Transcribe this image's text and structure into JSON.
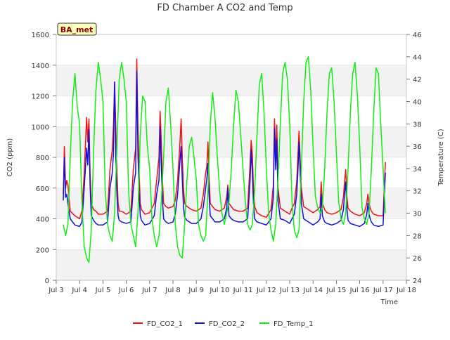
{
  "chart_data": {
    "type": "line",
    "title": "FD Chamber A CO2 and Temp",
    "badge": "BA_met",
    "xlabel": "Time",
    "ylabel_left": "CO2 (ppm)",
    "ylabel_right": "Temperature (C)",
    "xlim": [
      3.0,
      18.0
    ],
    "ylim_left": [
      0,
      1600
    ],
    "ylim_right": [
      24,
      46
    ],
    "x_ticks": [
      {
        "x": 3,
        "label": "Jul 3"
      },
      {
        "x": 4,
        "label": "Jul 4"
      },
      {
        "x": 5,
        "label": "Jul 5"
      },
      {
        "x": 6,
        "label": "Jul 6"
      },
      {
        "x": 7,
        "label": "Jul 7"
      },
      {
        "x": 8,
        "label": "Jul 8"
      },
      {
        "x": 9,
        "label": "Jul 9"
      },
      {
        "x": 10,
        "label": "Jul 10"
      },
      {
        "x": 11,
        "label": "Jul 11"
      },
      {
        "x": 12,
        "label": "Jul 12"
      },
      {
        "x": 13,
        "label": "Jul 13"
      },
      {
        "x": 14,
        "label": "Jul 14"
      },
      {
        "x": 15,
        "label": "Jul 15"
      },
      {
        "x": 16,
        "label": "Jul 16"
      },
      {
        "x": 17,
        "label": "Jul 17"
      },
      {
        "x": 18,
        "label": "Jul 18"
      }
    ],
    "y_ticks_left": [
      0,
      200,
      400,
      600,
      800,
      1000,
      1200,
      1400,
      1600
    ],
    "y_ticks_right": [
      24,
      26,
      28,
      30,
      32,
      34,
      36,
      38,
      40,
      42,
      44,
      46
    ],
    "grid": true,
    "legend_position": "bottom",
    "series": [
      {
        "name": "FD_CO2_1",
        "axis": "left",
        "color": "#ee1111",
        "x": [
          3.3,
          3.35,
          3.4,
          3.45,
          3.5,
          3.6,
          3.8,
          4.0,
          4.1,
          4.2,
          4.3,
          4.35,
          4.4,
          4.45,
          4.5,
          4.6,
          4.7,
          4.8,
          5.0,
          5.2,
          5.3,
          5.4,
          5.45,
          5.5,
          5.55,
          5.6,
          5.65,
          5.7,
          5.8,
          6.0,
          6.2,
          6.3,
          6.4,
          6.45,
          6.5,
          6.55,
          6.6,
          6.65,
          6.7,
          6.8,
          7.0,
          7.2,
          7.3,
          7.4,
          7.45,
          7.5,
          7.55,
          7.6,
          7.7,
          7.8,
          8.0,
          8.1,
          8.2,
          8.3,
          8.35,
          8.4,
          8.45,
          8.5,
          8.6,
          8.8,
          9.0,
          9.2,
          9.3,
          9.4,
          9.45,
          9.5,
          9.55,
          9.6,
          9.7,
          9.8,
          10.0,
          10.2,
          10.3,
          10.35,
          10.4,
          10.5,
          10.6,
          10.8,
          11.0,
          11.2,
          11.3,
          11.35,
          11.4,
          11.45,
          11.5,
          11.6,
          11.8,
          12.0,
          12.2,
          12.3,
          12.35,
          12.4,
          12.45,
          12.5,
          12.6,
          12.8,
          13.0,
          13.1,
          13.2,
          13.3,
          13.35,
          13.4,
          13.5,
          13.6,
          13.8,
          14.0,
          14.2,
          14.3,
          14.35,
          14.4,
          14.5,
          14.6,
          14.8,
          15.0,
          15.2,
          15.3,
          15.35,
          15.4,
          15.45,
          15.5,
          15.6,
          15.8,
          16.0,
          16.2,
          16.3,
          16.35,
          16.4,
          16.45,
          16.5,
          16.6,
          16.8,
          17.0,
          17.1
        ],
        "y": [
          560,
          870,
          600,
          650,
          620,
          450,
          420,
          400,
          450,
          700,
          1060,
          900,
          1050,
          700,
          500,
          460,
          450,
          430,
          430,
          450,
          720,
          850,
          1000,
          1290,
          1000,
          700,
          500,
          450,
          450,
          430,
          450,
          720,
          860,
          1440,
          1000,
          700,
          500,
          460,
          450,
          430,
          440,
          500,
          650,
          800,
          1100,
          900,
          650,
          500,
          480,
          470,
          480,
          520,
          650,
          900,
          1050,
          800,
          600,
          500,
          480,
          460,
          450,
          470,
          560,
          700,
          740,
          900,
          650,
          500,
          480,
          460,
          450,
          470,
          540,
          620,
          500,
          480,
          460,
          450,
          450,
          470,
          750,
          910,
          820,
          600,
          480,
          440,
          420,
          410,
          460,
          620,
          1050,
          800,
          1010,
          600,
          470,
          450,
          430,
          470,
          500,
          640,
          800,
          970,
          600,
          480,
          460,
          440,
          460,
          480,
          640,
          500,
          460,
          440,
          430,
          440,
          460,
          540,
          640,
          720,
          550,
          470,
          450,
          430,
          420,
          440,
          500,
          560,
          500,
          470,
          450,
          430,
          420,
          420,
          770
        ]
      },
      {
        "name": "FD_CO2_2",
        "axis": "left",
        "color": "#1111dd",
        "x": [
          3.3,
          3.35,
          3.4,
          3.45,
          3.5,
          3.6,
          3.8,
          4.0,
          4.1,
          4.2,
          4.3,
          4.35,
          4.4,
          4.45,
          4.5,
          4.6,
          4.7,
          4.8,
          5.0,
          5.2,
          5.3,
          5.4,
          5.45,
          5.5,
          5.55,
          5.6,
          5.65,
          5.7,
          5.8,
          6.0,
          6.2,
          6.3,
          6.4,
          6.45,
          6.5,
          6.55,
          6.6,
          6.65,
          6.7,
          6.8,
          7.0,
          7.2,
          7.3,
          7.4,
          7.45,
          7.5,
          7.55,
          7.6,
          7.7,
          7.8,
          8.0,
          8.1,
          8.2,
          8.3,
          8.35,
          8.4,
          8.45,
          8.5,
          8.6,
          8.8,
          9.0,
          9.2,
          9.3,
          9.4,
          9.45,
          9.5,
          9.55,
          9.6,
          9.7,
          9.8,
          10.0,
          10.2,
          10.3,
          10.35,
          10.4,
          10.5,
          10.6,
          10.8,
          11.0,
          11.2,
          11.3,
          11.35,
          11.4,
          11.45,
          11.5,
          11.6,
          11.8,
          12.0,
          12.2,
          12.3,
          12.35,
          12.4,
          12.45,
          12.5,
          12.6,
          12.8,
          13.0,
          13.1,
          13.2,
          13.3,
          13.35,
          13.4,
          13.5,
          13.6,
          13.8,
          14.0,
          14.2,
          14.3,
          14.35,
          14.4,
          14.5,
          14.6,
          14.8,
          15.0,
          15.2,
          15.3,
          15.35,
          15.4,
          15.45,
          15.5,
          15.6,
          15.8,
          16.0,
          16.2,
          16.3,
          16.35,
          16.4,
          16.45,
          16.5,
          16.6,
          16.8,
          17.0,
          17.1
        ],
        "y": [
          520,
          800,
          540,
          560,
          500,
          400,
          360,
          350,
          380,
          600,
          860,
          750,
          980,
          620,
          420,
          390,
          370,
          360,
          360,
          380,
          600,
          700,
          820,
          1290,
          800,
          560,
          420,
          390,
          380,
          370,
          380,
          600,
          700,
          1360,
          820,
          560,
          420,
          390,
          380,
          360,
          370,
          420,
          560,
          650,
          1000,
          740,
          520,
          400,
          380,
          370,
          380,
          430,
          560,
          780,
          870,
          650,
          480,
          410,
          390,
          370,
          370,
          400,
          480,
          600,
          660,
          760,
          540,
          420,
          400,
          380,
          380,
          400,
          470,
          600,
          420,
          400,
          390,
          380,
          380,
          400,
          640,
          850,
          700,
          500,
          400,
          380,
          370,
          360,
          400,
          540,
          990,
          720,
          920,
          520,
          400,
          390,
          370,
          400,
          430,
          560,
          700,
          900,
          500,
          400,
          380,
          360,
          380,
          400,
          560,
          420,
          380,
          370,
          360,
          370,
          390,
          460,
          560,
          640,
          470,
          390,
          370,
          360,
          350,
          370,
          430,
          500,
          430,
          400,
          380,
          360,
          350,
          360,
          700
        ]
      },
      {
        "name": "FD_Temp_1",
        "axis": "right",
        "color": "#11ee11",
        "x": [
          3.3,
          3.4,
          3.5,
          3.6,
          3.7,
          3.8,
          3.85,
          3.9,
          4.0,
          4.1,
          4.2,
          4.3,
          4.4,
          4.5,
          4.6,
          4.7,
          4.8,
          4.9,
          5.0,
          5.1,
          5.2,
          5.3,
          5.4,
          5.5,
          5.6,
          5.7,
          5.8,
          5.9,
          6.0,
          6.1,
          6.2,
          6.3,
          6.4,
          6.5,
          6.6,
          6.7,
          6.8,
          6.9,
          7.0,
          7.1,
          7.2,
          7.3,
          7.4,
          7.5,
          7.6,
          7.7,
          7.8,
          7.9,
          8.0,
          8.1,
          8.2,
          8.3,
          8.4,
          8.5,
          8.6,
          8.7,
          8.8,
          8.9,
          9.0,
          9.1,
          9.2,
          9.3,
          9.4,
          9.5,
          9.6,
          9.7,
          9.8,
          9.9,
          10.0,
          10.1,
          10.2,
          10.3,
          10.4,
          10.5,
          10.6,
          10.7,
          10.8,
          10.9,
          11.0,
          11.1,
          11.2,
          11.3,
          11.4,
          11.5,
          11.6,
          11.7,
          11.8,
          11.9,
          12.0,
          12.1,
          12.2,
          12.3,
          12.4,
          12.5,
          12.6,
          12.7,
          12.8,
          12.9,
          13.0,
          13.1,
          13.2,
          13.3,
          13.4,
          13.5,
          13.6,
          13.7,
          13.8,
          13.9,
          14.0,
          14.1,
          14.2,
          14.3,
          14.4,
          14.5,
          14.6,
          14.7,
          14.8,
          14.9,
          15.0,
          15.1,
          15.2,
          15.3,
          15.4,
          15.5,
          15.6,
          15.7,
          15.8,
          15.9,
          16.0,
          16.1,
          16.2,
          16.3,
          16.4,
          16.5,
          16.6,
          16.7,
          16.8,
          16.9,
          17.0,
          17.1
        ],
        "y": [
          29.0,
          28.0,
          29.0,
          35.0,
          40.0,
          42.5,
          41.0,
          39.5,
          38.0,
          31.0,
          27.0,
          26.0,
          25.6,
          28.5,
          35.5,
          41.0,
          43.5,
          42.0,
          40.0,
          32.0,
          29.0,
          28.0,
          27.5,
          30.0,
          36.0,
          42.0,
          43.5,
          42.0,
          40.0,
          32.0,
          29.0,
          28.0,
          27.0,
          30.0,
          37.0,
          40.5,
          40.0,
          36.0,
          34.0,
          29.5,
          28.0,
          27.0,
          28.0,
          31.0,
          35.0,
          40.0,
          41.2,
          38.0,
          34.0,
          29.0,
          27.0,
          26.2,
          26.0,
          29.0,
          33.0,
          36.0,
          36.8,
          35.0,
          33.0,
          29.0,
          28.0,
          27.5,
          28.0,
          32.0,
          38.0,
          40.8,
          38.5,
          35.0,
          32.0,
          30.0,
          29.0,
          30.0,
          31.0,
          34.0,
          38.0,
          41.0,
          40.0,
          37.0,
          34.0,
          31.0,
          29.0,
          28.5,
          29.0,
          32.0,
          37.0,
          41.5,
          42.5,
          39.0,
          34.0,
          30.0,
          28.5,
          27.5,
          29.0,
          33.0,
          38.0,
          42.5,
          43.5,
          42.0,
          38.0,
          31.0,
          28.5,
          27.8,
          28.5,
          34.0,
          40.0,
          43.5,
          44.0,
          41.0,
          36.0,
          31.5,
          30.5,
          30.0,
          30.5,
          34.0,
          39.0,
          42.5,
          43.0,
          40.0,
          35.5,
          31.0,
          29.5,
          29.0,
          30.0,
          34.0,
          39.0,
          42.5,
          43.5,
          40.5,
          36.0,
          30.5,
          29.5,
          29.0,
          30.0,
          34.0,
          39.0,
          43.0,
          42.5,
          38.0,
          34.0,
          30.0
        ]
      }
    ]
  }
}
